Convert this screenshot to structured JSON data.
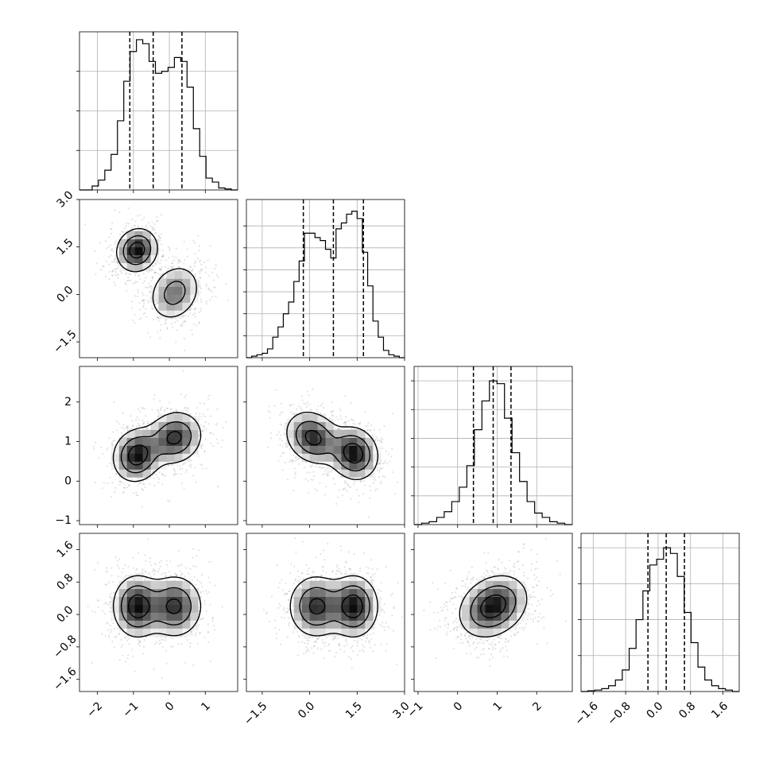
{
  "chart_data": {
    "type": "corner",
    "n_parameters": 4,
    "grid": true,
    "quantile_lines": "dashed",
    "contour_levels": 3,
    "colors": {
      "ink": "#000000",
      "grid": "#b0b0b0",
      "points": "#808080"
    },
    "parameters": [
      {
        "range": [
          -2.5,
          1.9
        ],
        "tick_values": [
          -2,
          -1,
          0,
          1
        ],
        "tick_labels": [
          "−2",
          "−1",
          "0",
          "1"
        ],
        "quantiles": [
          -1.1,
          -0.45,
          0.35
        ],
        "histogram": [
          0,
          0,
          0.02,
          0.05,
          0.1,
          0.18,
          0.35,
          0.55,
          0.7,
          0.76,
          0.74,
          0.65,
          0.59,
          0.6,
          0.62,
          0.67,
          0.65,
          0.52,
          0.31,
          0.17,
          0.06,
          0.04,
          0.01,
          0.005,
          0
        ],
        "ylim": [
          0,
          0.8
        ],
        "yticks": [
          0.2,
          0.4,
          0.6
        ]
      },
      {
        "range": [
          -2.0,
          3.0
        ],
        "tick_values": [
          -1.5,
          0.0,
          1.5,
          3.0
        ],
        "tick_labels": [
          "−1.5",
          "0.0",
          "1.5",
          "3.0"
        ],
        "quantiles": [
          -0.2,
          0.75,
          1.7
        ],
        "histogram": [
          0,
          0.01,
          0.02,
          0.03,
          0.06,
          0.14,
          0.21,
          0.3,
          0.38,
          0.52,
          0.66,
          0.85,
          0.85,
          0.82,
          0.8,
          0.74,
          0.68,
          0.88,
          0.92,
          0.98,
          1.0,
          0.95,
          0.72,
          0.49,
          0.25,
          0.14,
          0.05,
          0.02,
          0.01,
          0
        ],
        "ylim": [
          0,
          1.08
        ],
        "yticks": [
          0.15,
          0.3,
          0.45,
          0.6,
          0.75,
          0.9
        ]
      },
      {
        "range": [
          -1.1,
          2.9
        ],
        "tick_values": [
          -1,
          0,
          1,
          2
        ],
        "tick_labels": [
          "−1",
          "0",
          "1",
          "2"
        ],
        "quantiles": [
          0.4,
          0.9,
          1.35
        ],
        "histogram": [
          0,
          0.01,
          0.02,
          0.05,
          0.09,
          0.16,
          0.26,
          0.41,
          0.66,
          0.86,
          1.0,
          0.98,
          0.74,
          0.5,
          0.3,
          0.16,
          0.08,
          0.05,
          0.02,
          0.01,
          0
        ],
        "ylim": [
          0,
          1.1
        ],
        "yticks": [
          0.2,
          0.4,
          0.6,
          0.8,
          1.0
        ]
      },
      {
        "range": [
          -1.9,
          2.0
        ],
        "tick_values": [
          -1.6,
          -0.8,
          0.0,
          0.8,
          1.6
        ],
        "tick_labels": [
          "−1.6",
          "−0.8",
          "0.0",
          "0.8",
          "1.6"
        ],
        "quantiles": [
          -0.25,
          0.2,
          0.65
        ],
        "histogram": [
          0,
          0.005,
          0.01,
          0.02,
          0.04,
          0.08,
          0.15,
          0.3,
          0.5,
          0.7,
          0.88,
          0.92,
          1.0,
          0.96,
          0.8,
          0.55,
          0.34,
          0.17,
          0.08,
          0.04,
          0.02,
          0.01,
          0
        ],
        "ylim": [
          0,
          1.1
        ],
        "yticks": [
          0.25,
          0.5,
          0.75,
          1.0
        ]
      }
    ],
    "pairs": [
      {
        "x": 0,
        "y": 1,
        "components": [
          {
            "mx": -0.9,
            "my": 1.4,
            "sx": 0.3,
            "sy": 0.36,
            "rho": 0.1,
            "w": 0.5
          },
          {
            "mx": 0.15,
            "my": 0.05,
            "sx": 0.38,
            "sy": 0.48,
            "rho": 0.2,
            "w": 0.5
          }
        ]
      },
      {
        "x": 0,
        "y": 2,
        "components": [
          {
            "mx": -0.9,
            "my": 0.65,
            "sx": 0.35,
            "sy": 0.35,
            "rho": 0.1,
            "w": 0.5
          },
          {
            "mx": 0.15,
            "my": 1.1,
            "sx": 0.4,
            "sy": 0.35,
            "rho": 0.1,
            "w": 0.5
          }
        ]
      },
      {
        "x": 1,
        "y": 2,
        "components": [
          {
            "mx": 0.1,
            "my": 1.1,
            "sx": 0.45,
            "sy": 0.35,
            "rho": -0.2,
            "w": 0.5
          },
          {
            "mx": 1.4,
            "my": 0.7,
            "sx": 0.4,
            "sy": 0.35,
            "rho": -0.1,
            "w": 0.5
          }
        ]
      },
      {
        "x": 0,
        "y": 3,
        "components": [
          {
            "mx": -0.9,
            "my": 0.2,
            "sx": 0.35,
            "sy": 0.4,
            "rho": 0.0,
            "w": 0.5
          },
          {
            "mx": 0.15,
            "my": 0.2,
            "sx": 0.4,
            "sy": 0.4,
            "rho": 0.0,
            "w": 0.5
          }
        ]
      },
      {
        "x": 1,
        "y": 3,
        "components": [
          {
            "mx": 0.2,
            "my": 0.2,
            "sx": 0.45,
            "sy": 0.4,
            "rho": 0.0,
            "w": 0.5
          },
          {
            "mx": 1.4,
            "my": 0.2,
            "sx": 0.4,
            "sy": 0.4,
            "rho": 0.0,
            "w": 0.5
          }
        ]
      },
      {
        "x": 2,
        "y": 3,
        "components": [
          {
            "mx": 0.9,
            "my": 0.2,
            "sx": 0.45,
            "sy": 0.4,
            "rho": 0.25,
            "w": 1.0
          }
        ]
      }
    ]
  }
}
